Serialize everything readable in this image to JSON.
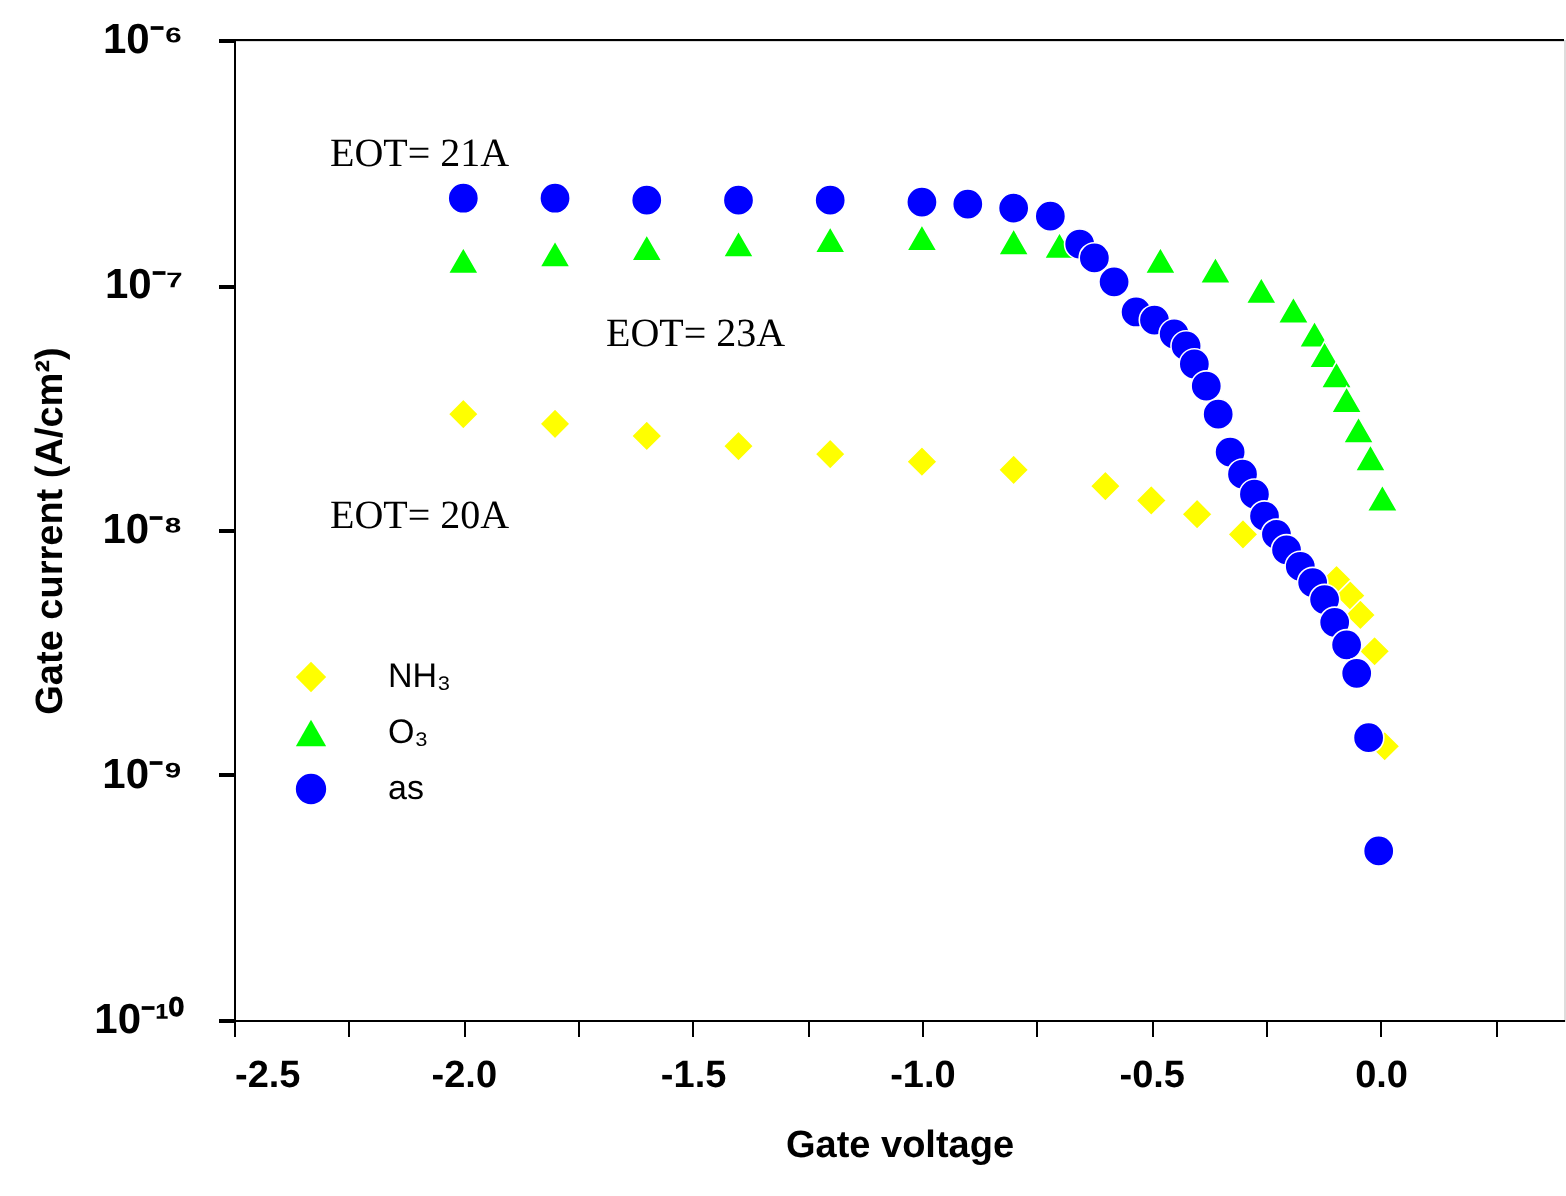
{
  "chart_data": {
    "type": "scatter",
    "xlabel": "Gate voltage",
    "ylabel": "Gate current (A/cm²)",
    "xlim": [
      -2.5,
      0.4
    ],
    "xticks": [
      {
        "value": -2.5,
        "label": "-2.5"
      },
      {
        "value": -2.25,
        "label": null
      },
      {
        "value": -2.0,
        "label": "-2.0"
      },
      {
        "value": -1.75,
        "label": null
      },
      {
        "value": -1.5,
        "label": "-1.5"
      },
      {
        "value": -1.25,
        "label": null
      },
      {
        "value": -1.0,
        "label": "-1.0"
      },
      {
        "value": -0.75,
        "label": null
      },
      {
        "value": -0.5,
        "label": "-0.5"
      },
      {
        "value": -0.25,
        "label": null
      },
      {
        "value": 0.0,
        "label": "0.0"
      },
      {
        "value": 0.25,
        "label": null
      }
    ],
    "ylim": [
      1e-10,
      1e-06
    ],
    "yticks": [
      {
        "value": 1e-10,
        "label": "10⁻¹⁰"
      },
      {
        "value": 1e-09,
        "label": "10⁻⁹"
      },
      {
        "value": 1e-08,
        "label": "10⁻⁸"
      },
      {
        "value": 1e-07,
        "label": "10⁻⁷"
      },
      {
        "value": 1e-06,
        "label": "10⁻⁶"
      }
    ],
    "log": true,
    "grid": false,
    "legend": "bottom left",
    "series": [
      {
        "name": "NH₃",
        "color": "#ffff00",
        "marker": "diamond",
        "x": [
          -2.0,
          -1.8,
          -1.6,
          -1.4,
          -1.2,
          -1.0,
          -0.8,
          -0.6,
          -0.5,
          -0.4,
          -0.3,
          -0.2,
          -0.096,
          -0.066,
          -0.044,
          -0.013,
          0.009
        ],
        "values": [
          2.97e-08,
          2.71e-08,
          2.42e-08,
          2.2e-08,
          2.04e-08,
          1.9e-08,
          1.76e-08,
          1.51e-08,
          1.32e-08,
          1.16e-08,
          9.6e-09,
          null,
          6.25e-09,
          5.4e-09,
          4.5e-09,
          3.2e-09,
          1.31e-09
        ]
      },
      {
        "name": "O₃",
        "color": "#00ff00",
        "marker": "triangle",
        "x": [
          -2.0,
          -1.8,
          -1.6,
          -1.4,
          -1.2,
          -1.0,
          -0.8,
          -0.7,
          -0.48,
          -0.36,
          -0.26,
          -0.19,
          -0.144,
          -0.122,
          -0.096,
          -0.074,
          -0.048,
          -0.022,
          0.004
        ],
        "values": [
          1.26e-07,
          1.34e-07,
          1.42e-07,
          1.47e-07,
          1.53e-07,
          1.56e-07,
          1.5e-07,
          1.45e-07,
          1.26e-07,
          1.15e-07,
          9.5e-08,
          7.9e-08,
          6.3e-08,
          5.2e-08,
          4.3e-08,
          3.4e-08,
          2.56e-08,
          1.97e-08,
          1.35e-08
        ]
      },
      {
        "name": "as",
        "color": "#0000ff",
        "marker": "circle",
        "x": [
          -2.0,
          -1.8,
          -1.6,
          -1.4,
          -1.2,
          -1.0,
          -0.9,
          -0.8,
          -0.72,
          -0.656,
          -0.624,
          -0.581,
          -0.533,
          -0.493,
          -0.45,
          -0.424,
          -0.406,
          -0.38,
          -0.354,
          -0.328,
          -0.301,
          -0.275,
          -0.253,
          -0.227,
          -0.205,
          -0.175,
          -0.148,
          -0.122,
          -0.1,
          -0.074,
          -0.052,
          -0.026,
          -0.004
        ],
        "values": [
          2.26e-07,
          2.26e-07,
          2.22e-07,
          2.22e-07,
          2.22e-07,
          2.18e-07,
          2.14e-07,
          2.06e-07,
          1.91e-07,
          1.47e-07,
          1.29e-07,
          1.03e-07,
          7.76e-08,
          7.19e-08,
          6.31e-08,
          5.64e-08,
          4.76e-08,
          3.87e-08,
          2.97e-08,
          2.08e-08,
          1.69e-08,
          1.4e-08,
          1.14e-08,
          9.6e-09,
          8.3e-09,
          7.1e-09,
          6.1e-09,
          5.2e-09,
          4.2e-09,
          3.4e-09,
          2.6e-09,
          1.42e-09,
          4.9e-10
        ]
      }
    ],
    "annotations": [
      "EOT= 21A",
      "EOT= 23A",
      "EOT= 20A"
    ]
  }
}
